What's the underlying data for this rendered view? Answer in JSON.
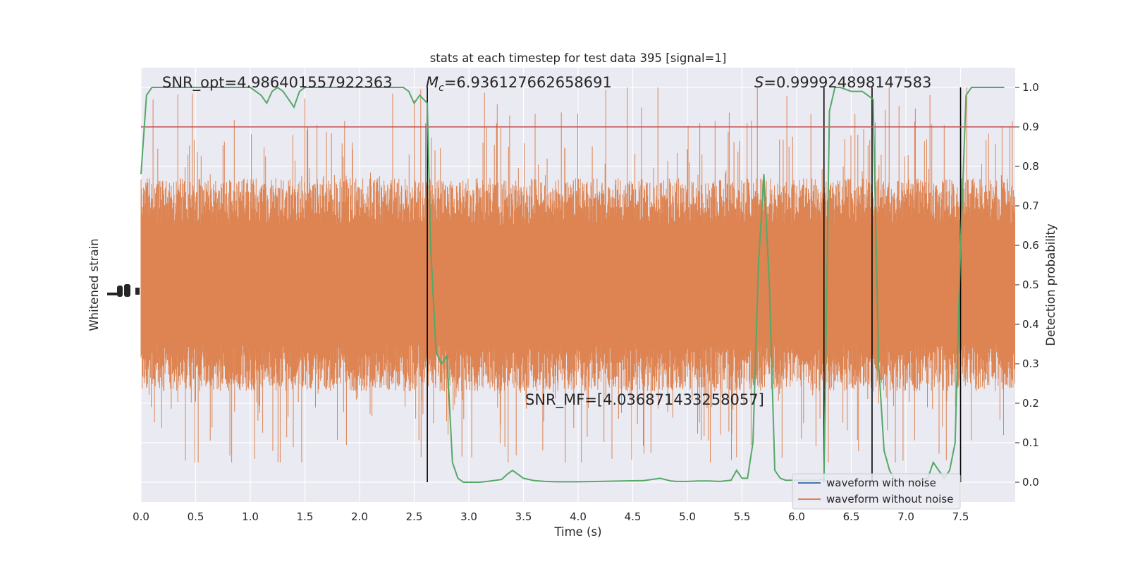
{
  "chart_data": {
    "type": "line",
    "title": "stats at each timestep for test data 395 [signal=1]",
    "xlabel": "Time (s)",
    "ylabel_left": "Whitened strain",
    "ylabel_right": "Detection probability",
    "xlim": [
      0,
      8
    ],
    "ylim_right": [
      -0.05,
      1.05
    ],
    "x_ticks": [
      "0.0",
      "0.5",
      "1.0",
      "1.5",
      "2.0",
      "2.5",
      "3.0",
      "3.5",
      "4.0",
      "4.5",
      "5.0",
      "5.5",
      "6.0",
      "6.5",
      "7.0",
      "7.5"
    ],
    "y_ticks_right": [
      "0.0",
      "0.1",
      "0.2",
      "0.3",
      "0.4",
      "0.5",
      "0.6",
      "0.7",
      "0.8",
      "0.9",
      "1.0"
    ],
    "grid": true,
    "legend_position": "lower-right",
    "annotations": {
      "snr_opt": "SNR_opt=4.986401557922363",
      "mc_symbol": "M",
      "mc_sub": "c",
      "mc_value": "=6.936127662658691",
      "s_symbol": "S",
      "s_value": "=0.999924898147583",
      "snr_mf": "SNR_MF=[4.036871433258057]"
    },
    "threshold": 0.9,
    "vertical_lines_x": [
      2.62,
      6.25,
      6.69,
      7.5
    ],
    "series": [
      {
        "name": "waveform with noise",
        "color": "#4c72b0"
      },
      {
        "name": "waveform without noise",
        "color": "#dd8452"
      }
    ],
    "detection_probability": {
      "color": "#55a868",
      "x": [
        0.0,
        0.05,
        0.1,
        0.15,
        0.2,
        0.3,
        0.4,
        0.5,
        0.6,
        0.7,
        0.8,
        0.9,
        1.0,
        1.05,
        1.1,
        1.15,
        1.2,
        1.25,
        1.3,
        1.35,
        1.4,
        1.45,
        1.5,
        1.6,
        1.7,
        1.8,
        1.9,
        2.0,
        2.1,
        2.2,
        2.3,
        2.4,
        2.45,
        2.5,
        2.55,
        2.62,
        2.65,
        2.7,
        2.75,
        2.8,
        2.85,
        2.9,
        2.95,
        3.0,
        3.1,
        3.2,
        3.3,
        3.35,
        3.4,
        3.45,
        3.5,
        3.6,
        3.7,
        3.8,
        3.9,
        4.0,
        4.2,
        4.4,
        4.6,
        4.75,
        4.85,
        4.9,
        5.0,
        5.1,
        5.2,
        5.3,
        5.4,
        5.45,
        5.5,
        5.55,
        5.6,
        5.65,
        5.7,
        5.75,
        5.8,
        5.85,
        5.9,
        6.0,
        6.1,
        6.2,
        6.25,
        6.3,
        6.35,
        6.4,
        6.5,
        6.6,
        6.65,
        6.7,
        6.75,
        6.8,
        6.85,
        6.9,
        7.0,
        7.1,
        7.2,
        7.25,
        7.3,
        7.35,
        7.4,
        7.45,
        7.5,
        7.55,
        7.6,
        7.7,
        7.8,
        7.9
      ],
      "y": [
        0.78,
        0.98,
        1.0,
        1.0,
        1.0,
        1.0,
        1.0,
        1.0,
        1.0,
        1.0,
        1.0,
        1.0,
        1.0,
        0.99,
        0.98,
        0.96,
        0.99,
        1.0,
        0.99,
        0.97,
        0.95,
        0.99,
        1.0,
        1.0,
        1.0,
        1.0,
        1.0,
        1.0,
        1.0,
        1.0,
        1.0,
        1.0,
        0.99,
        0.96,
        0.98,
        0.96,
        0.6,
        0.33,
        0.3,
        0.32,
        0.05,
        0.01,
        0.0,
        0.0,
        0.0,
        0.003,
        0.007,
        0.02,
        0.03,
        0.02,
        0.01,
        0.004,
        0.002,
        0.001,
        0.001,
        0.001,
        0.002,
        0.003,
        0.004,
        0.01,
        0.003,
        0.002,
        0.002,
        0.003,
        0.003,
        0.002,
        0.005,
        0.03,
        0.01,
        0.01,
        0.1,
        0.55,
        0.78,
        0.5,
        0.03,
        0.01,
        0.005,
        0.005,
        0.005,
        0.005,
        0.01,
        0.94,
        1.0,
        1.0,
        0.99,
        0.99,
        0.98,
        0.97,
        0.3,
        0.08,
        0.03,
        0.005,
        0.002,
        0.003,
        0.01,
        0.05,
        0.03,
        0.01,
        0.03,
        0.1,
        0.6,
        0.98,
        1.0,
        1.0,
        1.0,
        1.0
      ]
    },
    "whitened_strain": {
      "color": "#dd8452",
      "note_center": 0.5
    }
  }
}
